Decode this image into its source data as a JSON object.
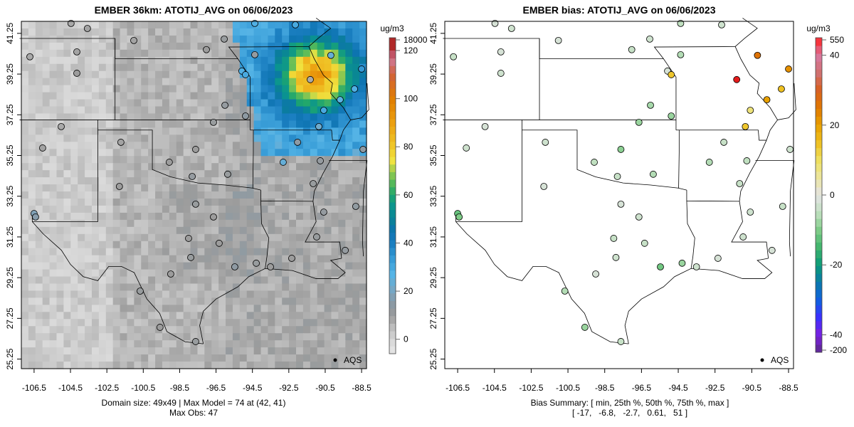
{
  "left_panel": {
    "title": "EMBER 36km: ATOTIJ_AVG on 06/06/2023",
    "footer_line1": "Domain size: 49x49 | Max Model = 74 at (42, 41)",
    "footer_line2": "Max Obs: 47",
    "legend_label": "AQS",
    "colorbar": {
      "unit": "ug/m3",
      "range": [
        -6,
        120
      ],
      "overflow_label": "18000",
      "ticks": [
        0,
        20,
        40,
        60,
        80,
        100,
        120
      ],
      "stops": [
        [
          -6,
          "#e8e8e8"
        ],
        [
          0,
          "#d6d6d6"
        ],
        [
          5,
          "#bdbdbd"
        ],
        [
          10,
          "#9c9c9c"
        ],
        [
          15,
          "#8a9aa5"
        ],
        [
          20,
          "#7aa6c2"
        ],
        [
          27,
          "#55b4e6"
        ],
        [
          33,
          "#3a9ed8"
        ],
        [
          40,
          "#1a7ec0"
        ],
        [
          45,
          "#0d74b0"
        ],
        [
          50,
          "#0a8296"
        ],
        [
          55,
          "#0a9490"
        ],
        [
          60,
          "#1ea56e"
        ],
        [
          65,
          "#56ba5a"
        ],
        [
          70,
          "#9ccc4e"
        ],
        [
          74,
          "#f0e542"
        ],
        [
          80,
          "#f0c82a"
        ],
        [
          90,
          "#eca010"
        ],
        [
          100,
          "#e07e00"
        ],
        [
          110,
          "#d2623a"
        ],
        [
          117,
          "#d07a9c"
        ],
        [
          120,
          "#b02828"
        ]
      ]
    }
  },
  "right_panel": {
    "title": "EMBER bias: ATOTIJ_AVG on 06/06/2023",
    "footer_line1": "Bias Summary: [ min, 25th %, 50th %, 75th %, max ]",
    "footer_line2": "[ -17,   -6.8,   -2.7,   0.61,   51 ]",
    "legend_label": "AQS",
    "colorbar": {
      "unit": "ug/m3",
      "range": [
        -45,
        45
      ],
      "top_label": "550",
      "bottom_label": "-200",
      "ticks": [
        -40,
        -20,
        0,
        20,
        40
      ],
      "stops": [
        [
          -45,
          "#5a2a8a"
        ],
        [
          -40,
          "#7a20e0"
        ],
        [
          -35,
          "#3a30ff"
        ],
        [
          -30,
          "#1060e0"
        ],
        [
          -25,
          "#0a7aaa"
        ],
        [
          -20,
          "#0a9a78"
        ],
        [
          -15,
          "#40b46c"
        ],
        [
          -10,
          "#7fcc88"
        ],
        [
          -5,
          "#c0e0c0"
        ],
        [
          0,
          "#e4e4e4"
        ],
        [
          5,
          "#ece6a0"
        ],
        [
          10,
          "#eee060"
        ],
        [
          15,
          "#eec020"
        ],
        [
          20,
          "#e8a000"
        ],
        [
          25,
          "#e07800"
        ],
        [
          30,
          "#d86020"
        ],
        [
          35,
          "#d07070"
        ],
        [
          40,
          "#d878a0"
        ],
        [
          45,
          "#ff2020"
        ],
        [
          50,
          "#d01818"
        ],
        [
          55,
          "#a02020"
        ]
      ]
    }
  },
  "axes": {
    "x_ticks": [
      -106.5,
      -104.5,
      -102.5,
      -100.5,
      -98.5,
      -96.5,
      -94.5,
      -92.5,
      -90.5,
      -88.5
    ],
    "y_ticks": [
      25.25,
      27.25,
      29.25,
      31.25,
      33.25,
      35.25,
      37.25,
      39.25,
      41.25
    ],
    "lon_range": [
      -107.2,
      -88.23
    ],
    "lat_range": [
      24.78,
      41.84
    ]
  },
  "chart_data": {
    "type": "heatmap",
    "grid": "49x49",
    "max_model": 74,
    "max_model_cell": [
      42,
      41
    ],
    "max_obs": 47,
    "bias_summary": {
      "min": -17,
      "p25": -6.8,
      "p50": -2.7,
      "p75": 0.61,
      "max": 51
    },
    "stations_columns": [
      "lon",
      "lat",
      "obs",
      "bias"
    ],
    "stations": [
      [
        -104.47,
        41.74,
        8,
        -2
      ],
      [
        -103.57,
        41.49,
        9,
        -3
      ],
      [
        -106.73,
        40.1,
        8,
        -4
      ],
      [
        -104.15,
        40.34,
        9,
        -2
      ],
      [
        -104.15,
        39.29,
        10,
        -3
      ],
      [
        -101.02,
        40.9,
        9,
        -2
      ],
      [
        -97.03,
        40.45,
        10,
        -4
      ],
      [
        -96.05,
        40.97,
        11,
        -3
      ],
      [
        -94.37,
        41.74,
        28,
        -5
      ],
      [
        -92.14,
        41.67,
        30,
        -3
      ],
      [
        -94.37,
        40.2,
        12,
        -6
      ],
      [
        -95.08,
        39.4,
        28,
        -2
      ],
      [
        -94.88,
        39.22,
        30,
        14
      ],
      [
        -91.32,
        38.98,
        8,
        48
      ],
      [
        -90.19,
        40.17,
        24,
        26
      ],
      [
        -88.89,
        38.52,
        28,
        15
      ],
      [
        -88.5,
        39.5,
        34,
        22
      ],
      [
        -89.68,
        37.99,
        26,
        20
      ],
      [
        -90.58,
        37.47,
        30,
        8
      ],
      [
        -90.85,
        36.67,
        22,
        14
      ],
      [
        -92.02,
        35.9,
        14,
        -4
      ],
      [
        -92.81,
        34.92,
        24,
        -6
      ],
      [
        -94.88,
        37.19,
        14,
        -8
      ],
      [
        -96.01,
        37.72,
        12,
        -7
      ],
      [
        -96.64,
        36.88,
        11,
        -8
      ],
      [
        -97.62,
        35.55,
        10,
        -9
      ],
      [
        -97.81,
        34.22,
        12,
        -4
      ],
      [
        -99.07,
        34.92,
        10,
        -5
      ],
      [
        -101.81,
        33.73,
        10,
        -2
      ],
      [
        -101.73,
        35.9,
        9,
        -3
      ],
      [
        -105.01,
        36.67,
        8,
        -2
      ],
      [
        -106.03,
        35.62,
        9,
        -3
      ],
      [
        -106.5,
        32.4,
        18,
        -12
      ],
      [
        -106.42,
        32.23,
        16,
        -10
      ],
      [
        -98.01,
        31.18,
        10,
        -4
      ],
      [
        -97.89,
        30.24,
        11,
        -3
      ],
      [
        -98.99,
        29.43,
        10,
        -2
      ],
      [
        -100.67,
        28.59,
        11,
        -6
      ],
      [
        -99.58,
        26.81,
        10,
        -8
      ],
      [
        -97.62,
        26.11,
        11,
        -4
      ],
      [
        -95.47,
        29.78,
        14,
        -11
      ],
      [
        -94.29,
        29.96,
        11,
        -8
      ],
      [
        -93.51,
        29.78,
        10,
        -3
      ],
      [
        -92.34,
        30.2,
        10,
        -2
      ],
      [
        -90.97,
        31.25,
        11,
        -3
      ],
      [
        -89.4,
        30.59,
        12,
        -2
      ],
      [
        -90.58,
        32.47,
        12,
        -3
      ],
      [
        -88.82,
        32.75,
        13,
        -4
      ],
      [
        -91.16,
        33.87,
        11,
        -4
      ],
      [
        -90.77,
        34.99,
        12,
        -5
      ],
      [
        -88.42,
        35.55,
        14,
        -3
      ],
      [
        -97.62,
        32.86,
        11,
        -2
      ],
      [
        -96.64,
        32.23,
        10,
        -3
      ],
      [
        -95.86,
        34.33,
        11,
        -6
      ],
      [
        -96.33,
        30.94,
        10,
        -4
      ]
    ]
  }
}
